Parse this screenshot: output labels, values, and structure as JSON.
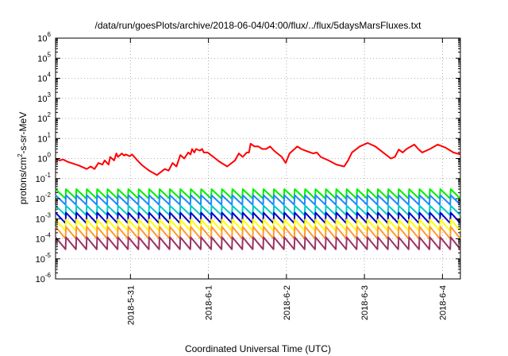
{
  "chart_data": {
    "type": "line",
    "title": "/data/run/goesPlots/archive/2018-06-04/04:00/flux/../flux/5daysMarsFluxes.txt",
    "xlabel": "Coordinated Universal Time (UTC)",
    "ylabel_main": "protons/cm",
    "ylabel_sup": "2",
    "ylabel_tail": "-s-sr-MeV",
    "y_scale": "log",
    "ylim_exp": [
      -6,
      6
    ],
    "ytick_exponents": [
      -6,
      -5,
      -4,
      -3,
      -2,
      -1,
      0,
      1,
      2,
      3,
      4,
      5,
      6
    ],
    "ytick_base": "10",
    "xlim_days": [
      0,
      5.19
    ],
    "xticks": [
      {
        "label": "2018-5-31",
        "day": 0.96
      },
      {
        "label": "2018-6-1",
        "day": 1.96
      },
      {
        "label": "2018-6-2",
        "day": 2.96
      },
      {
        "label": "2018-6-3",
        "day": 3.96
      },
      {
        "label": "2018-6-4",
        "day": 4.96
      }
    ],
    "grid": true,
    "series": [
      {
        "color": "#ff0000",
        "x": [
          0.0,
          0.05,
          0.1,
          0.15,
          0.2,
          0.3,
          0.4,
          0.45,
          0.5,
          0.55,
          0.6,
          0.63,
          0.68,
          0.7,
          0.75,
          0.78,
          0.8,
          0.85,
          0.88,
          0.9,
          0.95,
          0.98,
          1.05,
          1.1,
          1.15,
          1.2,
          1.3,
          1.4,
          1.45,
          1.5,
          1.55,
          1.6,
          1.65,
          1.7,
          1.73,
          1.75,
          1.78,
          1.8,
          1.85,
          1.88,
          1.9,
          1.95,
          2.05,
          2.1,
          2.2,
          2.3,
          2.35,
          2.4,
          2.45,
          2.48,
          2.5,
          2.55,
          2.6,
          2.65,
          2.7,
          2.75,
          2.8,
          2.9,
          2.95,
          3.0,
          3.1,
          3.15,
          3.2,
          3.3,
          3.35,
          3.4,
          3.5,
          3.6,
          3.7,
          3.75,
          3.8,
          3.9,
          4.0,
          4.1,
          4.2,
          4.3,
          4.35,
          4.4,
          4.45,
          4.5,
          4.6,
          4.65,
          4.7,
          4.8,
          4.9,
          5.0,
          5.1,
          5.19
        ],
        "y": [
          1.0,
          0.8,
          0.9,
          0.7,
          0.6,
          0.45,
          0.3,
          0.4,
          0.3,
          0.6,
          0.5,
          0.8,
          0.5,
          1.2,
          0.8,
          1.8,
          1.2,
          1.8,
          1.4,
          1.6,
          1.3,
          1.6,
          0.8,
          0.5,
          0.35,
          0.25,
          0.15,
          0.3,
          0.25,
          0.6,
          0.4,
          1.5,
          1.0,
          2.0,
          1.6,
          3.0,
          2.0,
          3.0,
          2.5,
          3.0,
          2.0,
          2.0,
          1.0,
          0.7,
          0.4,
          0.8,
          1.8,
          1.2,
          2.0,
          2.0,
          5.5,
          4.0,
          4.0,
          3.0,
          3.0,
          4.0,
          2.5,
          1.2,
          0.6,
          1.8,
          4.0,
          3.0,
          2.5,
          1.8,
          2.0,
          1.2,
          0.8,
          0.5,
          0.4,
          0.8,
          2.0,
          4.0,
          6.0,
          4.0,
          2.0,
          1.0,
          1.2,
          2.8,
          2.0,
          3.0,
          5.0,
          3.0,
          2.0,
          3.0,
          5.0,
          3.5,
          2.0,
          1.6
        ]
      },
      {
        "color": "#00ee00",
        "base": 0.03,
        "trough": 0.01,
        "period": 0.1333
      },
      {
        "color": "#1e88ff",
        "base": 0.015,
        "trough": 0.005,
        "period": 0.1333
      },
      {
        "color": "#00c8c8",
        "base": 0.0045,
        "trough": 0.0015,
        "period": 0.1333
      },
      {
        "color": "#0000c8",
        "base": 0.002,
        "trough": 0.0006,
        "period": 0.1333
      },
      {
        "color": "#ffff00",
        "base": 0.0009,
        "trough": 0.00025,
        "period": 0.1333
      },
      {
        "color": "#ff9933",
        "base": 0.0004,
        "trough": 0.0001,
        "period": 0.1333
      },
      {
        "color": "#993366",
        "base": 0.00012,
        "trough": 3e-05,
        "period": 0.1333
      }
    ]
  }
}
